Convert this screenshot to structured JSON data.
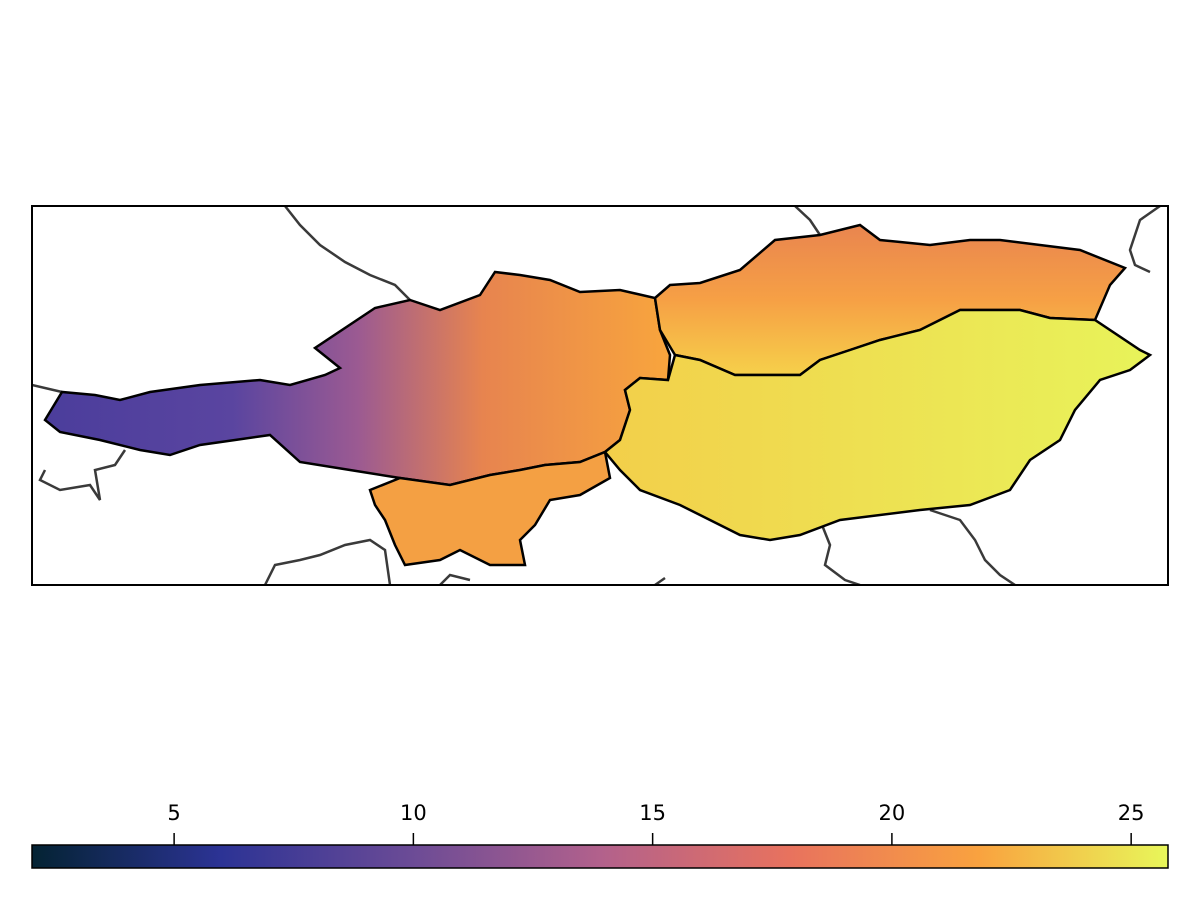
{
  "colorbar": {
    "lim": [
      2.03,
      25.77
    ],
    "ticks": [
      5,
      10,
      15,
      20,
      25
    ],
    "colormap": [
      "#042333",
      "#2c3395",
      "#6b4b96",
      "#b2618c",
      "#e8725e",
      "#f9a23f",
      "#e8f75a"
    ]
  }
}
